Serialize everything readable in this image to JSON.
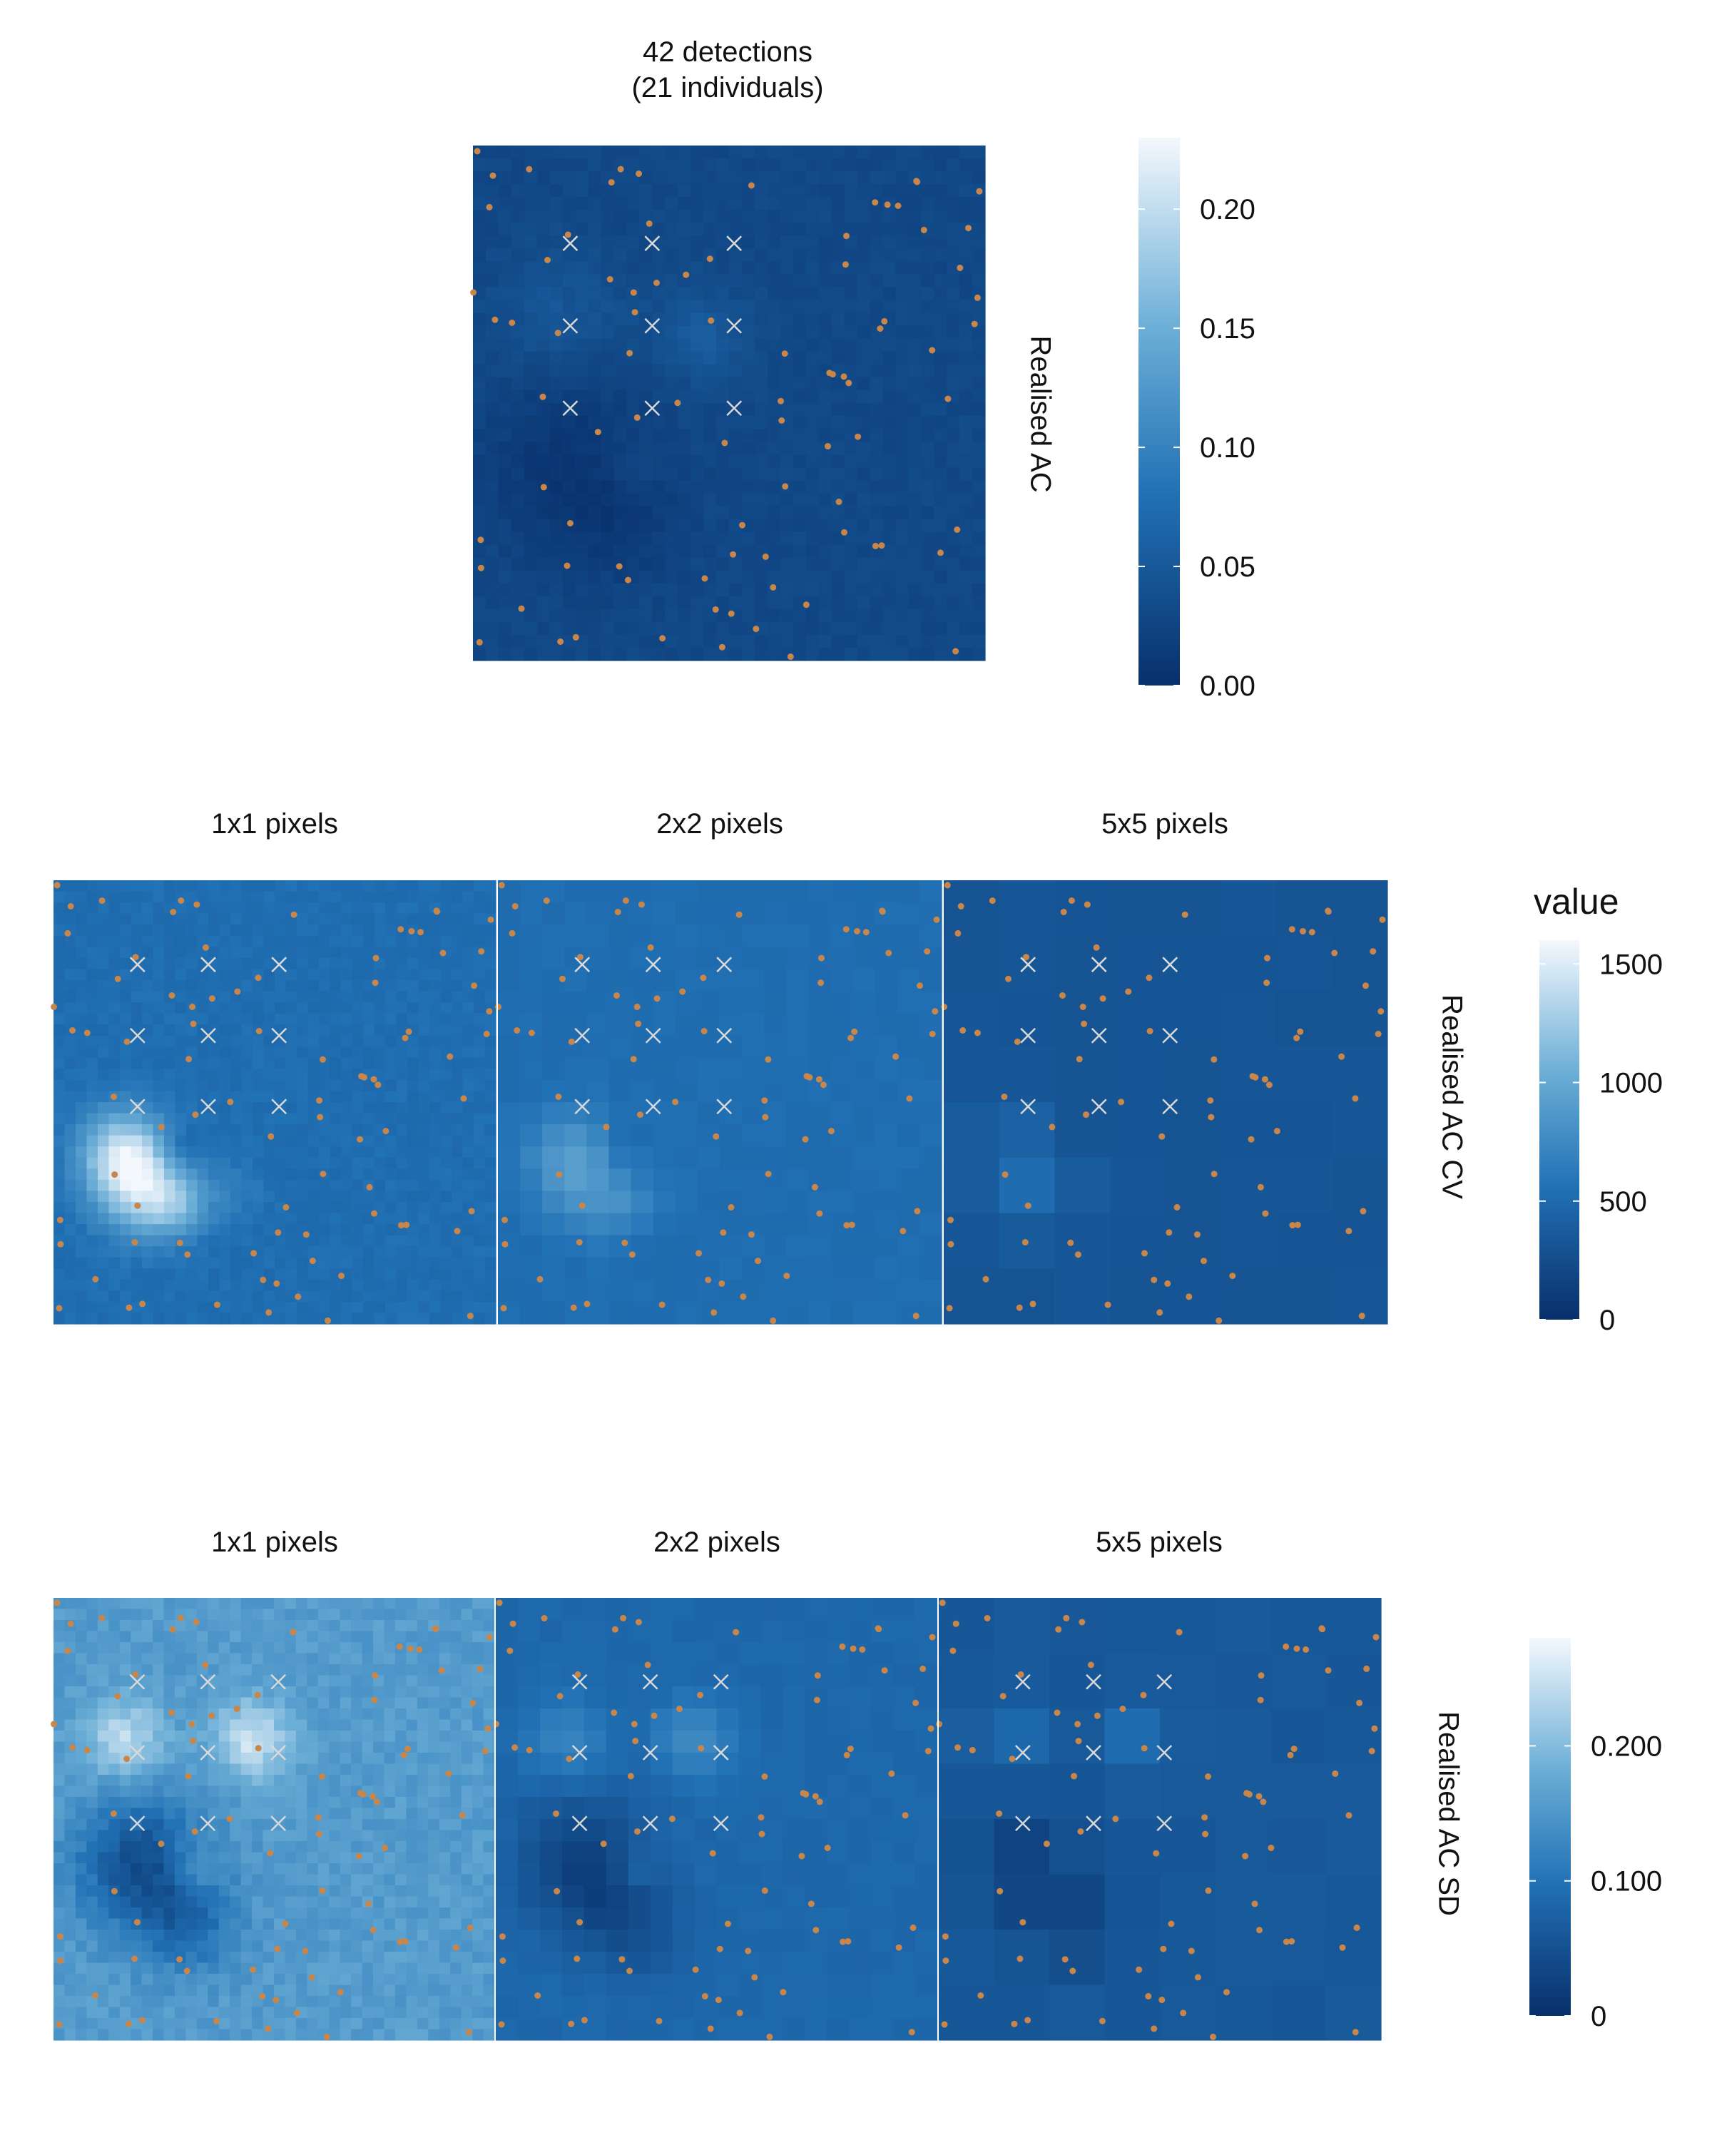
{
  "chart_data": [
    {
      "type": "heatmap",
      "title": "42 detections",
      "subtitle": "(21 individuals)",
      "strip_label": "Realised AC",
      "legend": {
        "title": "",
        "ticks": [
          "0.00",
          "0.05",
          "0.10",
          "0.15",
          "0.20"
        ],
        "tick_values": [
          0,
          0.05,
          0.1,
          0.15,
          0.2
        ],
        "range": [
          0,
          0.23
        ]
      },
      "panels": [
        {
          "label": "",
          "pixel_size": 1
        }
      ]
    },
    {
      "type": "heatmap",
      "strip_label": "Realised AC CV",
      "legend": {
        "title": "value",
        "ticks": [
          "0",
          "500",
          "1000",
          "1500"
        ],
        "tick_values": [
          0,
          500,
          1000,
          1500
        ],
        "range": [
          0,
          1600
        ]
      },
      "panels": [
        {
          "label": "1x1 pixels",
          "pixel_size": 1
        },
        {
          "label": "2x2 pixels",
          "pixel_size": 2
        },
        {
          "label": "5x5 pixels",
          "pixel_size": 5
        }
      ]
    },
    {
      "type": "heatmap",
      "strip_label": "Realised AC SD",
      "legend": {
        "title": "",
        "ticks": [
          "0",
          "0.100",
          "0.200"
        ],
        "tick_values": [
          0,
          0.1,
          0.2
        ],
        "range": [
          0,
          0.28
        ]
      },
      "panels": [
        {
          "label": "1x1 pixels",
          "pixel_size": 1
        },
        {
          "label": "2x2 pixels",
          "pixel_size": 2
        },
        {
          "label": "5x5 pixels",
          "pixel_size": 5
        }
      ]
    }
  ],
  "colors": {
    "scale_low": "#08306b",
    "scale_mid": "#4a98c9",
    "scale_high": "#f4f8fd",
    "detection_point": "#c8864a",
    "trap_marker": "#d9d9d9"
  }
}
